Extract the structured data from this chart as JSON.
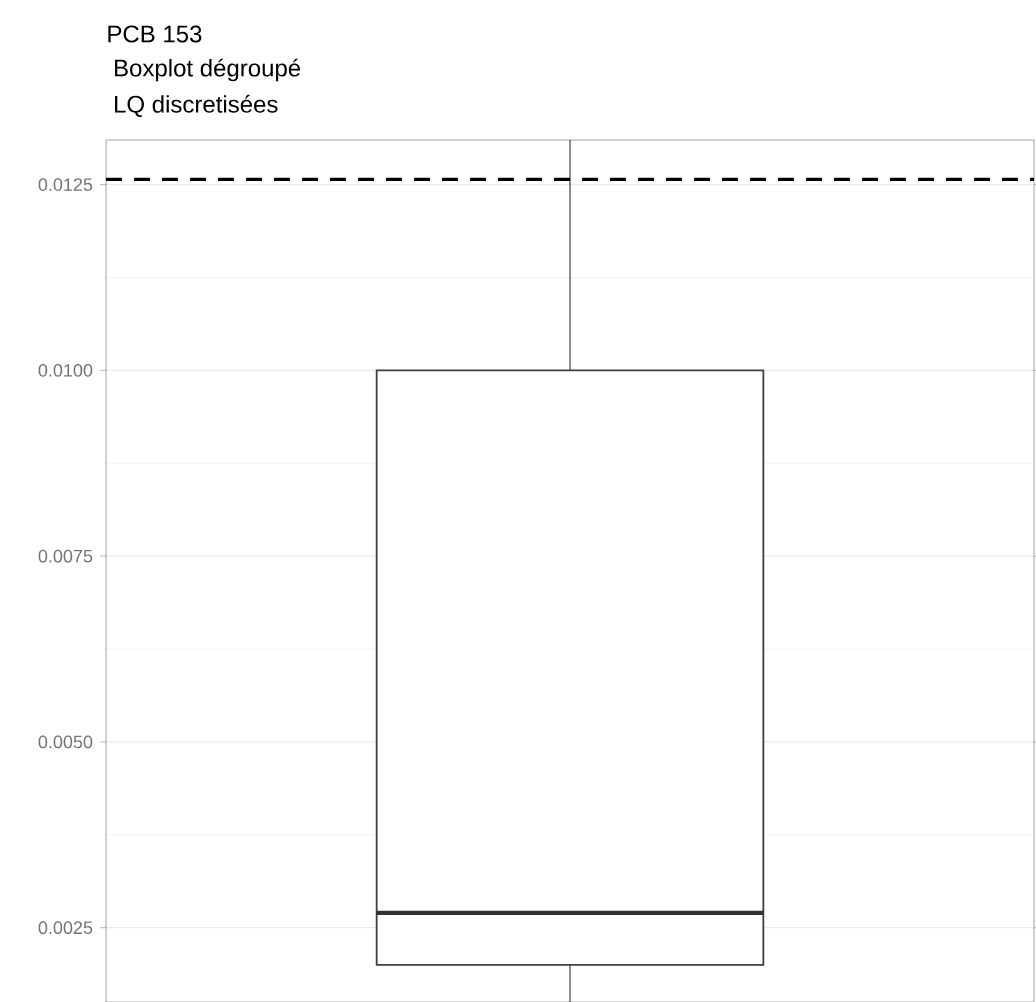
{
  "chart_data": {
    "type": "box",
    "title": "PCB 153",
    "subtitle": "Boxplot dégroupé",
    "annotations": [
      "LQ discretisées"
    ],
    "categories": [
      null
    ],
    "boxes": [
      {
        "low": 0.0015,
        "q1": 0.002,
        "median": 0.0027,
        "q3": 0.01,
        "high": 0.0131
      }
    ],
    "ylim": [
      0.0015,
      0.0131
    ],
    "yticks": [
      0.0025,
      {
        "value": 0.005,
        "label": "0.0050"
      },
      0.0075,
      {
        "value": 0.01,
        "label": "0.0100"
      },
      0.0125
    ],
    "grid": "y",
    "ref_lines": [
      {
        "axis": "y",
        "value": 0.01257,
        "line_style": "dashed",
        "color": "#000000"
      }
    ]
  }
}
